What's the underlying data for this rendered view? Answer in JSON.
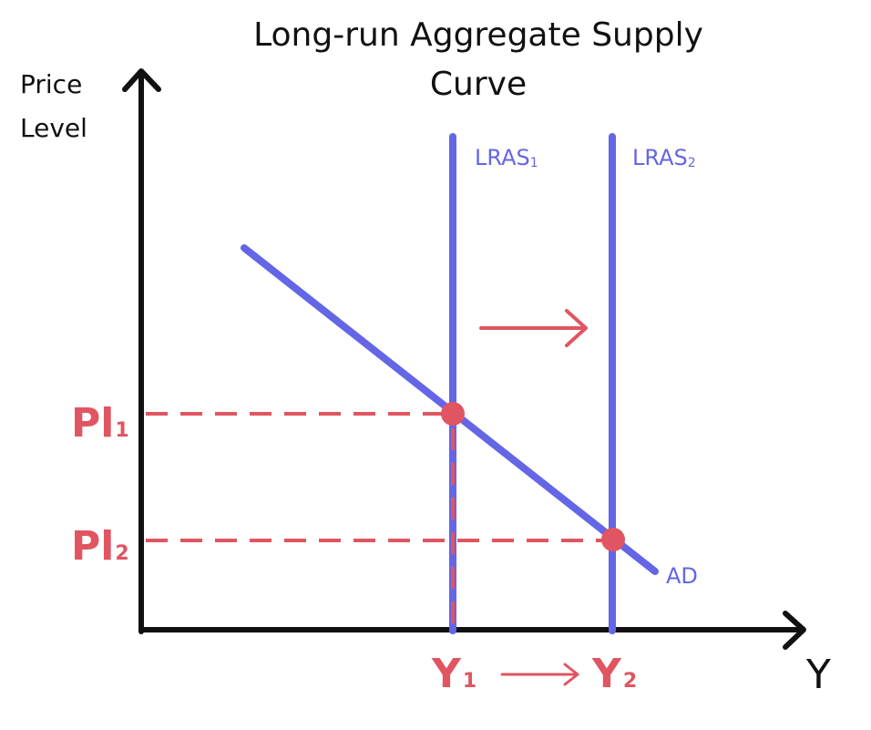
{
  "title_line1": "Long-run Aggregate Supply",
  "title_line2": "Curve",
  "y_axis_label_line1": "Price",
  "y_axis_label_line2": "Level",
  "x_axis_label": "Y",
  "curves": {
    "lras1": {
      "label_main": "LRAS",
      "label_sub": "1"
    },
    "lras2": {
      "label_main": "LRAS",
      "label_sub": "2"
    },
    "ad": {
      "label": "AD"
    }
  },
  "price_levels": {
    "pl1": {
      "main": "Pl",
      "sub": "1"
    },
    "pl2": {
      "main": "Pl",
      "sub": "2"
    }
  },
  "outputs": {
    "y1": {
      "main": "Y",
      "sub": "1"
    },
    "y2": {
      "main": "Y",
      "sub": "2"
    }
  },
  "colors": {
    "curve": "#6466e6",
    "annotation": "#e05561",
    "axis": "#111111"
  }
}
